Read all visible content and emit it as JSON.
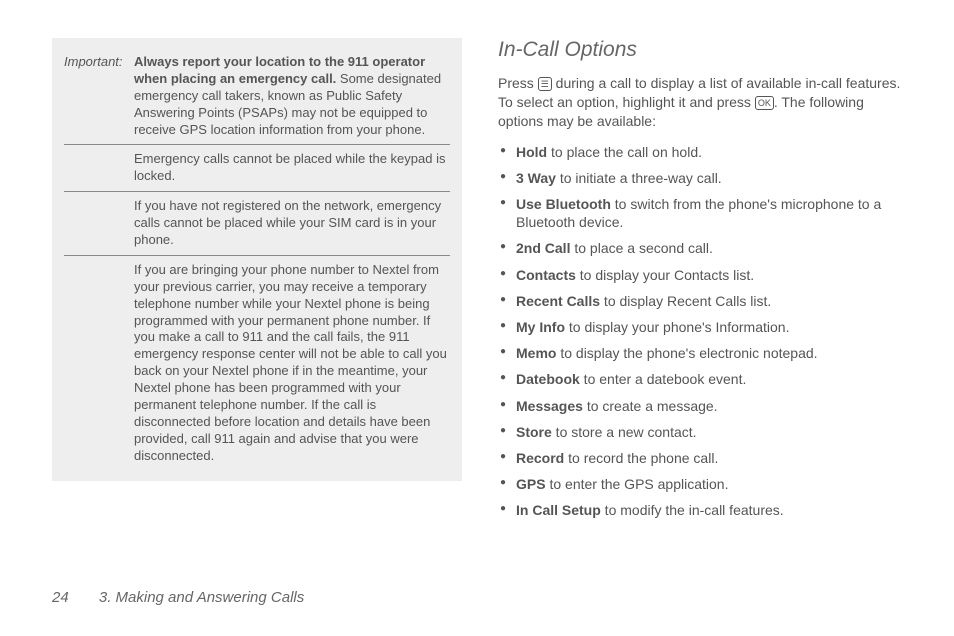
{
  "importantBox": {
    "label": "Important:",
    "rows": [
      {
        "bold": "Always report your location to the 911 operator when placing an emergency call.",
        "rest": " Some designated emergency call takers, known as Public Safety Answering Points (PSAPs) may not be equipped to receive GPS location information from your phone."
      },
      {
        "bold": "",
        "rest": "Emergency calls cannot be placed while the keypad is locked."
      },
      {
        "bold": "",
        "rest": "If you have not registered on the network, emergency calls cannot be placed while your SIM card is in your phone."
      },
      {
        "bold": "",
        "rest": "If you are bringing your phone number to Nextel from your previous carrier, you may receive a temporary telephone number while your Nextel phone is being programmed with your permanent phone number. If you make a call to 911 and the call fails, the 911 emergency response center will not be able to call you back on your Nextel phone if in the meantime, your Nextel phone has been programmed with your permanent telephone number. If the call is disconnected before location and details have been provided, call 911 again and advise that you were disconnected."
      }
    ]
  },
  "section": {
    "title": "In-Call Options",
    "introParts": {
      "p1": "Press ",
      "key1": "☰",
      "p2": " during a call to display a list of available in-call features. To select an option, highlight it and press ",
      "key2": "OK",
      "p3": ". The following options may be available:"
    },
    "bullets": [
      {
        "b": "Hold",
        "t": " to place the call on hold."
      },
      {
        "b": "3 Way",
        "t": " to initiate a three-way call."
      },
      {
        "b": "Use Bluetooth",
        "t": " to switch from the phone's microphone to a Bluetooth device."
      },
      {
        "b": "2nd Call",
        "t": " to place a second call."
      },
      {
        "b": "Contacts",
        "t": " to display your Contacts list."
      },
      {
        "b": "Recent Calls",
        "t": " to display Recent Calls list."
      },
      {
        "b": "My Info",
        "t": " to display your phone's Information."
      },
      {
        "b": "Memo",
        "t": " to display the phone's electronic notepad."
      },
      {
        "b": "Datebook",
        "t": " to enter a datebook event."
      },
      {
        "b": "Messages",
        "t": " to create a message."
      },
      {
        "b": "Store",
        "t": " to store a new contact."
      },
      {
        "b": "Record",
        "t": " to record the phone call."
      },
      {
        "b": "GPS",
        "t": " to enter the GPS application."
      },
      {
        "b": "In Call Setup",
        "t": " to modify the in-call features."
      }
    ]
  },
  "footer": {
    "page": "24",
    "chapter": "3. Making and Answering Calls"
  }
}
